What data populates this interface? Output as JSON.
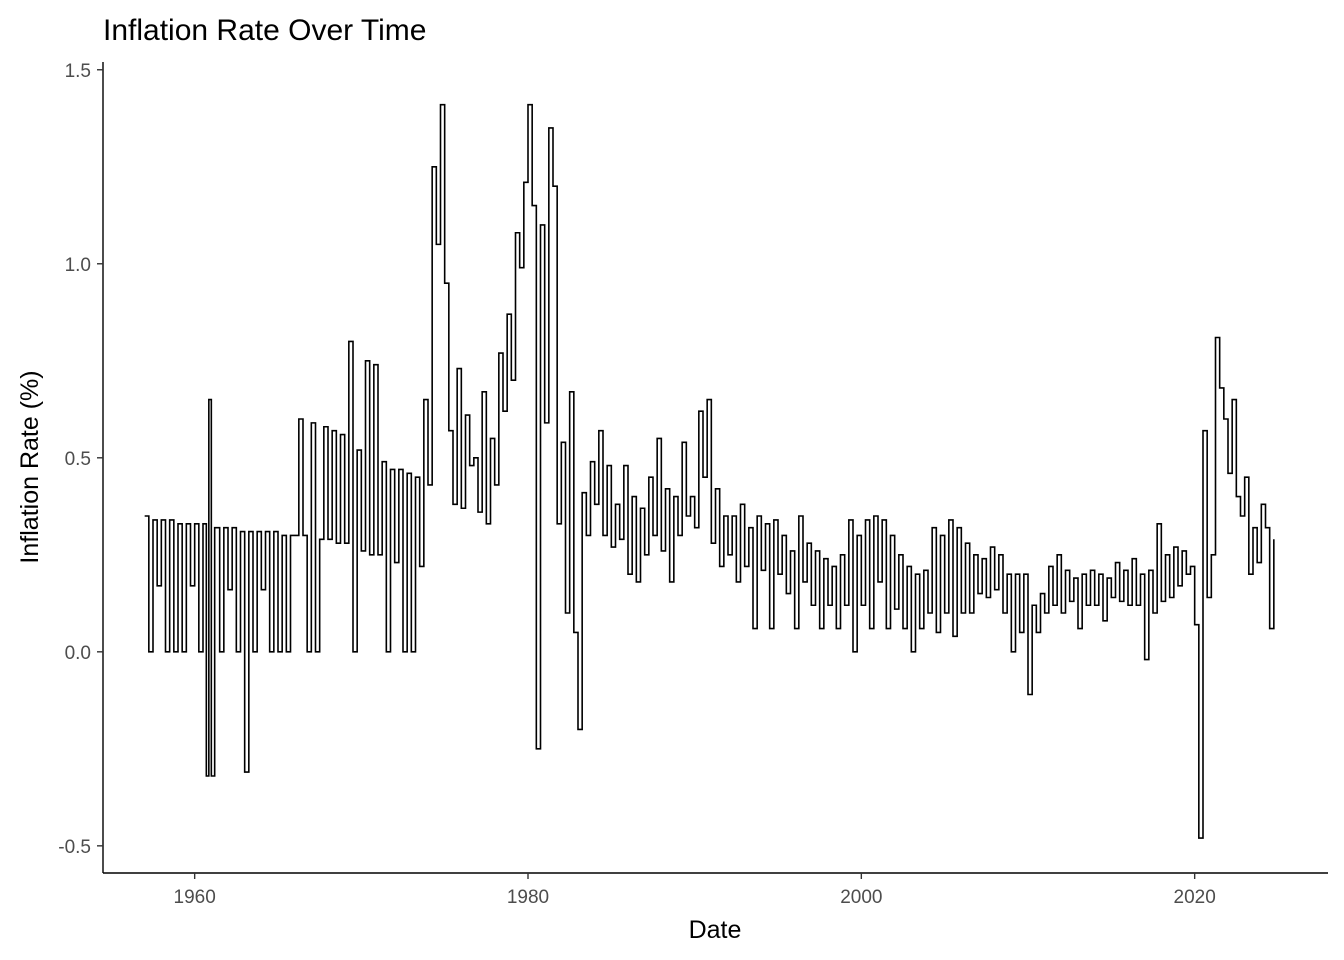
{
  "chart_data": {
    "type": "line",
    "title": "Inflation Rate Over Time",
    "xlabel": "Date",
    "ylabel": "Inflation Rate (%)",
    "xlim": [
      1954.5,
      2028.0
    ],
    "ylim": [
      -0.57,
      1.52
    ],
    "x_ticks": [
      1960,
      1980,
      2000,
      2020
    ],
    "y_ticks": [
      -0.5,
      0.0,
      0.5,
      1.0,
      1.5
    ],
    "x_tick_labels": [
      "1960",
      "1980",
      "2000",
      "2020"
    ],
    "y_tick_labels": [
      "-0.5",
      "0.0",
      "0.5",
      "1.0",
      "1.5"
    ],
    "grid": false,
    "legend": "none",
    "series": [
      {
        "color": "#000000",
        "points": [
          [
            1957.0,
            0.35
          ],
          [
            1957.25,
            0.0
          ],
          [
            1957.5,
            0.34
          ],
          [
            1957.75,
            0.17
          ],
          [
            1958.0,
            0.34
          ],
          [
            1958.25,
            0.0
          ],
          [
            1958.5,
            0.34
          ],
          [
            1958.75,
            0.0
          ],
          [
            1959.0,
            0.33
          ],
          [
            1959.25,
            0.0
          ],
          [
            1959.5,
            0.33
          ],
          [
            1959.75,
            0.17
          ],
          [
            1960.0,
            0.33
          ],
          [
            1960.25,
            0.0
          ],
          [
            1960.5,
            0.33
          ],
          [
            1960.7,
            -0.32
          ],
          [
            1960.85,
            0.65
          ],
          [
            1961.0,
            -0.32
          ],
          [
            1961.2,
            0.32
          ],
          [
            1961.5,
            0.0
          ],
          [
            1961.75,
            0.32
          ],
          [
            1962.0,
            0.16
          ],
          [
            1962.25,
            0.32
          ],
          [
            1962.5,
            0.0
          ],
          [
            1962.75,
            0.31
          ],
          [
            1963.0,
            -0.31
          ],
          [
            1963.25,
            0.31
          ],
          [
            1963.5,
            0.0
          ],
          [
            1963.75,
            0.31
          ],
          [
            1964.0,
            0.16
          ],
          [
            1964.25,
            0.31
          ],
          [
            1964.5,
            0.0
          ],
          [
            1964.75,
            0.31
          ],
          [
            1965.0,
            0.0
          ],
          [
            1965.25,
            0.3
          ],
          [
            1965.5,
            0.0
          ],
          [
            1965.75,
            0.3
          ],
          [
            1966.0,
            0.3
          ],
          [
            1966.25,
            0.6
          ],
          [
            1966.5,
            0.3
          ],
          [
            1966.75,
            0.0
          ],
          [
            1967.0,
            0.59
          ],
          [
            1967.25,
            0.0
          ],
          [
            1967.5,
            0.29
          ],
          [
            1967.75,
            0.58
          ],
          [
            1968.0,
            0.29
          ],
          [
            1968.25,
            0.57
          ],
          [
            1968.5,
            0.28
          ],
          [
            1968.75,
            0.56
          ],
          [
            1969.0,
            0.28
          ],
          [
            1969.25,
            0.8
          ],
          [
            1969.5,
            0.0
          ],
          [
            1969.75,
            0.52
          ],
          [
            1970.0,
            0.26
          ],
          [
            1970.25,
            0.75
          ],
          [
            1970.5,
            0.25
          ],
          [
            1970.75,
            0.74
          ],
          [
            1971.0,
            0.25
          ],
          [
            1971.25,
            0.49
          ],
          [
            1971.5,
            0.0
          ],
          [
            1971.75,
            0.47
          ],
          [
            1972.0,
            0.23
          ],
          [
            1972.25,
            0.47
          ],
          [
            1972.5,
            0.0
          ],
          [
            1972.75,
            0.46
          ],
          [
            1973.0,
            0.0
          ],
          [
            1973.25,
            0.45
          ],
          [
            1973.5,
            0.22
          ],
          [
            1973.75,
            0.65
          ],
          [
            1974.0,
            0.43
          ],
          [
            1974.25,
            1.25
          ],
          [
            1974.5,
            1.05
          ],
          [
            1974.75,
            1.41
          ],
          [
            1975.0,
            0.95
          ],
          [
            1975.25,
            0.57
          ],
          [
            1975.5,
            0.38
          ],
          [
            1975.75,
            0.73
          ],
          [
            1976.0,
            0.37
          ],
          [
            1976.25,
            0.61
          ],
          [
            1976.5,
            0.48
          ],
          [
            1976.75,
            0.5
          ],
          [
            1977.0,
            0.36
          ],
          [
            1977.25,
            0.67
          ],
          [
            1977.5,
            0.33
          ],
          [
            1977.75,
            0.55
          ],
          [
            1978.0,
            0.43
          ],
          [
            1978.25,
            0.77
          ],
          [
            1978.5,
            0.62
          ],
          [
            1978.75,
            0.87
          ],
          [
            1979.0,
            0.7
          ],
          [
            1979.25,
            1.08
          ],
          [
            1979.5,
            0.99
          ],
          [
            1979.75,
            1.21
          ],
          [
            1980.0,
            1.41
          ],
          [
            1980.25,
            1.15
          ],
          [
            1980.5,
            -0.25
          ],
          [
            1980.75,
            1.1
          ],
          [
            1981.0,
            0.59
          ],
          [
            1981.25,
            1.35
          ],
          [
            1981.5,
            1.2
          ],
          [
            1981.75,
            0.33
          ],
          [
            1982.0,
            0.54
          ],
          [
            1982.25,
            0.1
          ],
          [
            1982.5,
            0.67
          ],
          [
            1982.75,
            0.05
          ],
          [
            1983.0,
            -0.2
          ],
          [
            1983.25,
            0.41
          ],
          [
            1983.5,
            0.3
          ],
          [
            1983.75,
            0.49
          ],
          [
            1984.0,
            0.38
          ],
          [
            1984.25,
            0.57
          ],
          [
            1984.5,
            0.3
          ],
          [
            1984.75,
            0.48
          ],
          [
            1985.0,
            0.27
          ],
          [
            1985.25,
            0.38
          ],
          [
            1985.5,
            0.29
          ],
          [
            1985.75,
            0.48
          ],
          [
            1986.0,
            0.2
          ],
          [
            1986.25,
            0.4
          ],
          [
            1986.5,
            0.18
          ],
          [
            1986.75,
            0.37
          ],
          [
            1987.0,
            0.25
          ],
          [
            1987.25,
            0.45
          ],
          [
            1987.5,
            0.3
          ],
          [
            1987.75,
            0.55
          ],
          [
            1988.0,
            0.26
          ],
          [
            1988.25,
            0.42
          ],
          [
            1988.5,
            0.18
          ],
          [
            1988.75,
            0.4
          ],
          [
            1989.0,
            0.3
          ],
          [
            1989.25,
            0.54
          ],
          [
            1989.5,
            0.35
          ],
          [
            1989.75,
            0.4
          ],
          [
            1990.0,
            0.32
          ],
          [
            1990.25,
            0.62
          ],
          [
            1990.5,
            0.45
          ],
          [
            1990.75,
            0.65
          ],
          [
            1991.0,
            0.28
          ],
          [
            1991.25,
            0.42
          ],
          [
            1991.5,
            0.22
          ],
          [
            1991.75,
            0.35
          ],
          [
            1992.0,
            0.25
          ],
          [
            1992.25,
            0.35
          ],
          [
            1992.5,
            0.18
          ],
          [
            1992.75,
            0.38
          ],
          [
            1993.0,
            0.22
          ],
          [
            1993.25,
            0.32
          ],
          [
            1993.5,
            0.06
          ],
          [
            1993.75,
            0.35
          ],
          [
            1994.0,
            0.21
          ],
          [
            1994.25,
            0.33
          ],
          [
            1994.5,
            0.06
          ],
          [
            1994.75,
            0.34
          ],
          [
            1995.0,
            0.2
          ],
          [
            1995.25,
            0.3
          ],
          [
            1995.5,
            0.15
          ],
          [
            1995.75,
            0.26
          ],
          [
            1996.0,
            0.06
          ],
          [
            1996.25,
            0.35
          ],
          [
            1996.5,
            0.18
          ],
          [
            1996.75,
            0.28
          ],
          [
            1997.0,
            0.12
          ],
          [
            1997.25,
            0.26
          ],
          [
            1997.5,
            0.06
          ],
          [
            1997.75,
            0.24
          ],
          [
            1998.0,
            0.12
          ],
          [
            1998.25,
            0.22
          ],
          [
            1998.5,
            0.06
          ],
          [
            1998.75,
            0.25
          ],
          [
            1999.0,
            0.12
          ],
          [
            1999.25,
            0.34
          ],
          [
            1999.5,
            0.0
          ],
          [
            1999.75,
            0.3
          ],
          [
            2000.0,
            0.12
          ],
          [
            2000.25,
            0.34
          ],
          [
            2000.5,
            0.06
          ],
          [
            2000.75,
            0.35
          ],
          [
            2001.0,
            0.18
          ],
          [
            2001.25,
            0.34
          ],
          [
            2001.5,
            0.06
          ],
          [
            2001.75,
            0.3
          ],
          [
            2002.0,
            0.11
          ],
          [
            2002.25,
            0.25
          ],
          [
            2002.5,
            0.06
          ],
          [
            2002.75,
            0.22
          ],
          [
            2003.0,
            0.0
          ],
          [
            2003.25,
            0.2
          ],
          [
            2003.5,
            0.06
          ],
          [
            2003.75,
            0.21
          ],
          [
            2004.0,
            0.1
          ],
          [
            2004.25,
            0.32
          ],
          [
            2004.5,
            0.05
          ],
          [
            2004.75,
            0.3
          ],
          [
            2005.0,
            0.1
          ],
          [
            2005.25,
            0.34
          ],
          [
            2005.5,
            0.04
          ],
          [
            2005.75,
            0.32
          ],
          [
            2006.0,
            0.1
          ],
          [
            2006.25,
            0.28
          ],
          [
            2006.5,
            0.1
          ],
          [
            2006.75,
            0.25
          ],
          [
            2007.0,
            0.15
          ],
          [
            2007.25,
            0.24
          ],
          [
            2007.5,
            0.14
          ],
          [
            2007.75,
            0.27
          ],
          [
            2008.0,
            0.16
          ],
          [
            2008.25,
            0.25
          ],
          [
            2008.5,
            0.1
          ],
          [
            2008.75,
            0.2
          ],
          [
            2009.0,
            0.0
          ],
          [
            2009.25,
            0.2
          ],
          [
            2009.5,
            0.05
          ],
          [
            2009.75,
            0.2
          ],
          [
            2010.0,
            -0.11
          ],
          [
            2010.25,
            0.12
          ],
          [
            2010.5,
            0.05
          ],
          [
            2010.75,
            0.15
          ],
          [
            2011.0,
            0.1
          ],
          [
            2011.25,
            0.22
          ],
          [
            2011.5,
            0.12
          ],
          [
            2011.75,
            0.25
          ],
          [
            2012.0,
            0.1
          ],
          [
            2012.25,
            0.21
          ],
          [
            2012.5,
            0.13
          ],
          [
            2012.75,
            0.19
          ],
          [
            2013.0,
            0.06
          ],
          [
            2013.25,
            0.2
          ],
          [
            2013.5,
            0.12
          ],
          [
            2013.75,
            0.21
          ],
          [
            2014.0,
            0.12
          ],
          [
            2014.25,
            0.2
          ],
          [
            2014.5,
            0.08
          ],
          [
            2014.75,
            0.19
          ],
          [
            2015.0,
            0.14
          ],
          [
            2015.25,
            0.23
          ],
          [
            2015.5,
            0.13
          ],
          [
            2015.75,
            0.21
          ],
          [
            2016.0,
            0.12
          ],
          [
            2016.25,
            0.24
          ],
          [
            2016.5,
            0.12
          ],
          [
            2016.75,
            0.2
          ],
          [
            2017.0,
            -0.02
          ],
          [
            2017.25,
            0.21
          ],
          [
            2017.5,
            0.1
          ],
          [
            2017.75,
            0.33
          ],
          [
            2018.0,
            0.13
          ],
          [
            2018.25,
            0.25
          ],
          [
            2018.5,
            0.14
          ],
          [
            2018.75,
            0.27
          ],
          [
            2019.0,
            0.17
          ],
          [
            2019.25,
            0.26
          ],
          [
            2019.5,
            0.2
          ],
          [
            2019.75,
            0.22
          ],
          [
            2020.0,
            0.07
          ],
          [
            2020.25,
            -0.48
          ],
          [
            2020.5,
            0.57
          ],
          [
            2020.75,
            0.14
          ],
          [
            2021.0,
            0.25
          ],
          [
            2021.25,
            0.81
          ],
          [
            2021.5,
            0.68
          ],
          [
            2021.75,
            0.6
          ],
          [
            2022.0,
            0.46
          ],
          [
            2022.25,
            0.65
          ],
          [
            2022.5,
            0.4
          ],
          [
            2022.75,
            0.35
          ],
          [
            2023.0,
            0.45
          ],
          [
            2023.25,
            0.2
          ],
          [
            2023.5,
            0.32
          ],
          [
            2023.75,
            0.23
          ],
          [
            2024.0,
            0.38
          ],
          [
            2024.25,
            0.32
          ],
          [
            2024.5,
            0.06
          ],
          [
            2024.75,
            0.29
          ]
        ]
      }
    ]
  }
}
